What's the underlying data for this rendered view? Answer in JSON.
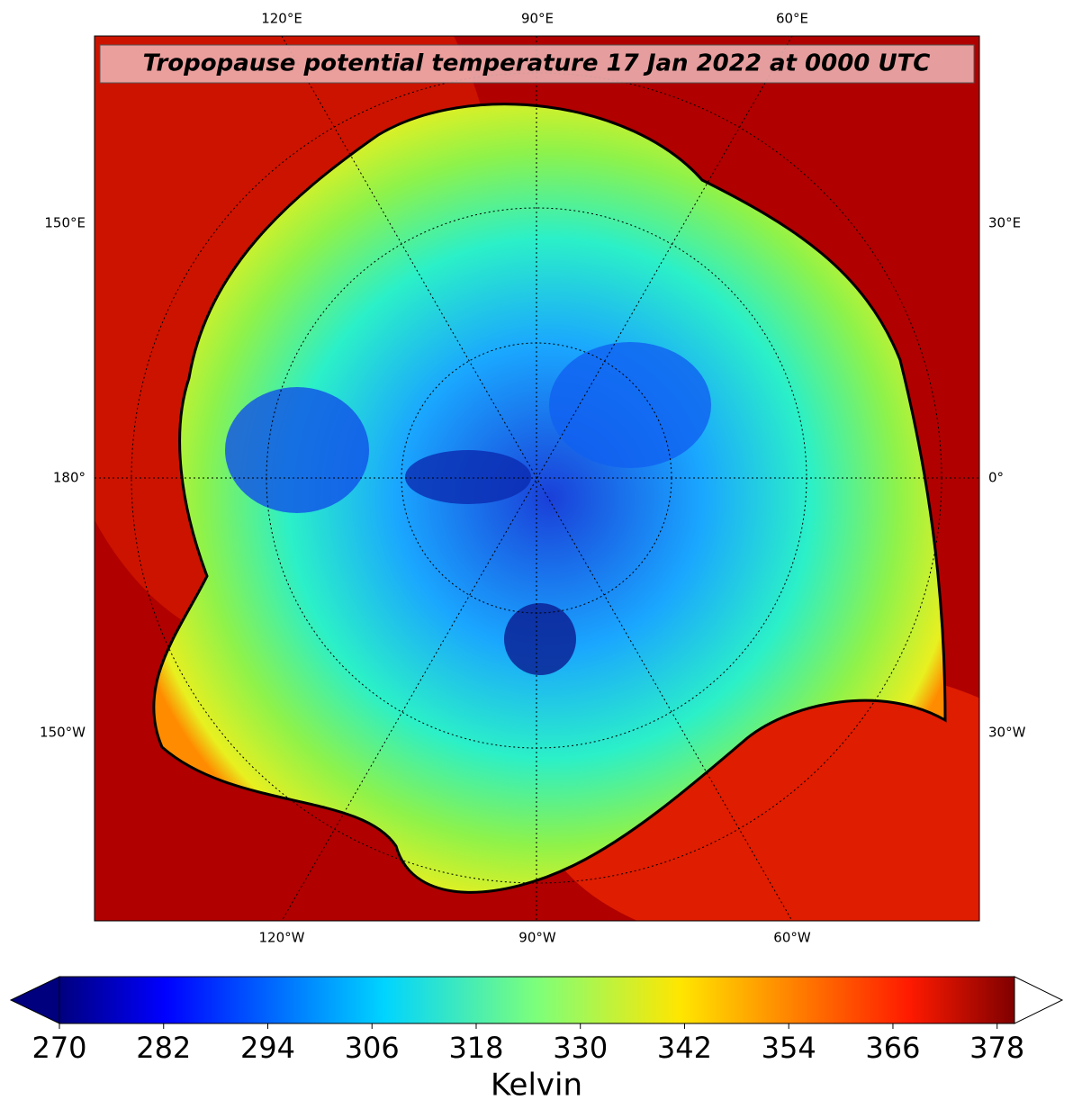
{
  "map": {
    "title": "Tropopause potential temperature 17 Jan 2022 at 0000 UTC",
    "lon_labels": {
      "top": [
        "120°E",
        "90°E",
        "60°E"
      ],
      "left": [
        "150°E",
        "180°",
        "150°W"
      ],
      "right": [
        "30°E",
        "0°",
        "30°W"
      ],
      "bottom": [
        "120°W",
        "90°W",
        "60°W"
      ]
    }
  },
  "colorbar": {
    "range": [
      270,
      380
    ],
    "ticks": [
      270,
      282,
      294,
      306,
      318,
      330,
      342,
      354,
      366,
      378
    ],
    "label": "Kelvin"
  }
}
